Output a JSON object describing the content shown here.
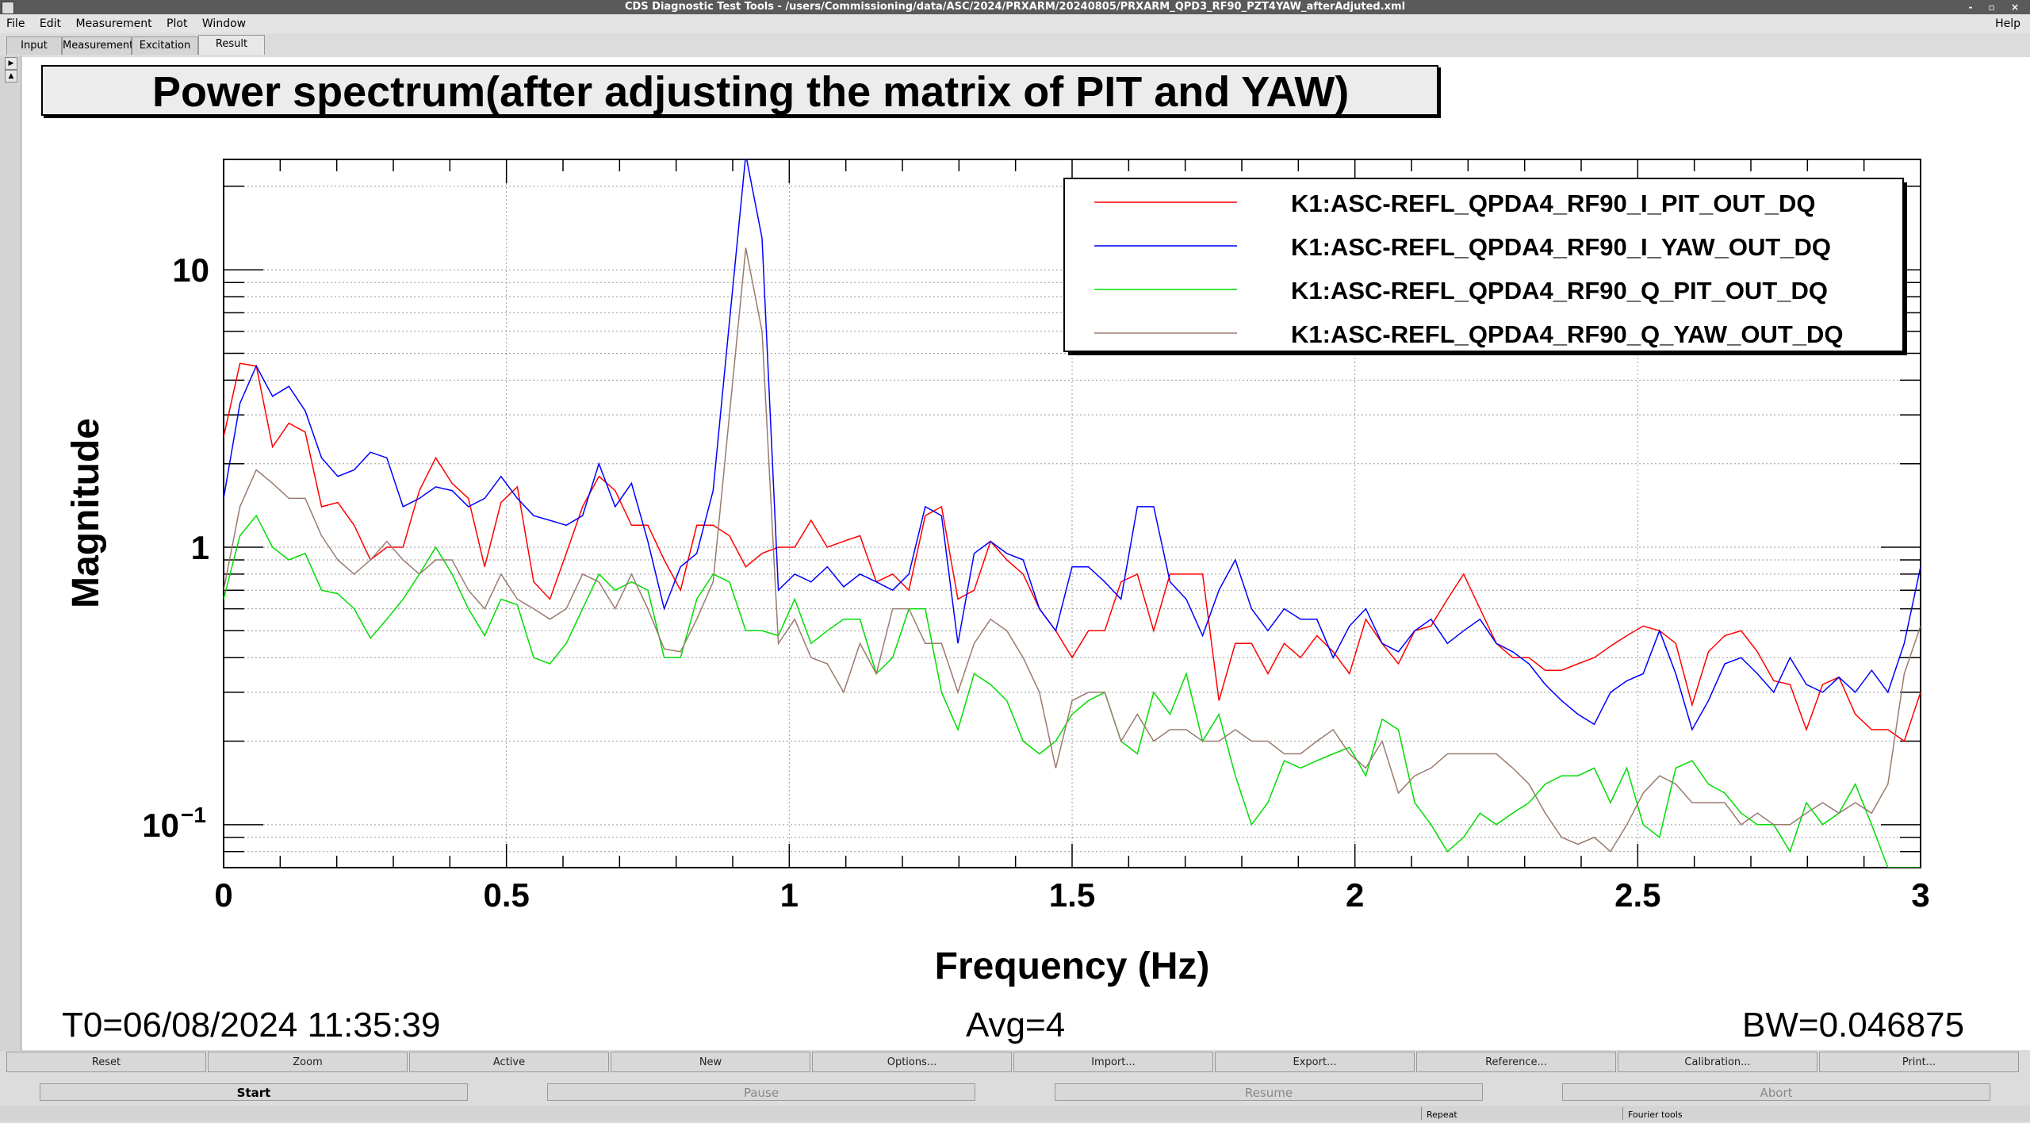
{
  "window": {
    "title": "CDS Diagnostic Test Tools - /users/Commissioning/data/ASC/2024/PRXARM/20240805/PRXARM_QPD3_RF90_PZT4YAW_afterAdjuted.xml",
    "controls": "- ▫ ×"
  },
  "menu": {
    "items": [
      "File",
      "Edit",
      "Measurement",
      "Plot",
      "Window"
    ],
    "help": "Help"
  },
  "tabs": [
    "Input",
    "Measurement",
    "Excitation",
    "Result"
  ],
  "plot": {
    "title": "Power spectrum(after adjusting the matrix of PIT and YAW)",
    "t0": "T0=06/08/2024 11:35:39",
    "avg": "Avg=4",
    "bw": "BW=0.046875"
  },
  "chart_data": {
    "type": "line",
    "xlabel": "Frequency (Hz)",
    "ylabel": "Magnitude",
    "xlim": [
      0,
      3
    ],
    "ylim": [
      0.07,
      25
    ],
    "yscale": "log",
    "grid": true,
    "legend": "top-right",
    "x_ticks": [
      {
        "v": 0,
        "label": "0"
      },
      {
        "v": 0.5,
        "label": "0.5"
      },
      {
        "v": 1,
        "label": "1"
      },
      {
        "v": 1.5,
        "label": "1.5"
      },
      {
        "v": 2,
        "label": "2"
      },
      {
        "v": 2.5,
        "label": "2.5"
      },
      {
        "v": 3,
        "label": "3"
      }
    ],
    "y_ticks": [
      {
        "v": 0.1,
        "label": "10",
        "sup": "−1"
      },
      {
        "v": 1,
        "label": "1",
        "sup": ""
      },
      {
        "v": 10,
        "label": "10",
        "sup": ""
      }
    ],
    "series": [
      {
        "name": "K1:ASC-REFL_QPDA4_RF90_I_PIT_OUT_DQ",
        "color": "#ff0000",
        "values": [
          2.5,
          4.6,
          4.5,
          2.3,
          2.8,
          2.6,
          1.4,
          1.45,
          1.2,
          0.9,
          1.0,
          1.0,
          1.6,
          2.1,
          1.7,
          1.5,
          0.85,
          1.45,
          1.65,
          0.75,
          0.65,
          0.95,
          1.4,
          1.8,
          1.6,
          1.2,
          1.2,
          0.9,
          0.7,
          1.2,
          1.2,
          1.1,
          0.85,
          0.95,
          1.0,
          1.0,
          1.25,
          1.0,
          1.05,
          1.1,
          0.75,
          0.8,
          0.7,
          1.3,
          1.4,
          0.65,
          0.7,
          1.05,
          0.9,
          0.8,
          0.6,
          0.5,
          0.4,
          0.5,
          0.5,
          0.75,
          0.8,
          0.5,
          0.8,
          0.8,
          0.8,
          0.28,
          0.45,
          0.45,
          0.35,
          0.45,
          0.4,
          0.48,
          0.42,
          0.35,
          0.55,
          0.45,
          0.38,
          0.5,
          0.52,
          0.65,
          0.8,
          0.6,
          0.45,
          0.4,
          0.4,
          0.36,
          0.36,
          0.38,
          0.4,
          0.44,
          0.48,
          0.52,
          0.5,
          0.45,
          0.27,
          0.42,
          0.48,
          0.5,
          0.42,
          0.33,
          0.32,
          0.22,
          0.32,
          0.34,
          0.25,
          0.22,
          0.22,
          0.2,
          0.3
        ]
      },
      {
        "name": "K1:ASC-REFL_QPDA4_RF90_I_YAW_OUT_DQ",
        "color": "#0000ff",
        "values": [
          1.5,
          3.3,
          4.5,
          3.5,
          3.8,
          3.1,
          2.1,
          1.8,
          1.9,
          2.2,
          2.1,
          1.4,
          1.5,
          1.65,
          1.6,
          1.4,
          1.5,
          1.8,
          1.5,
          1.3,
          1.25,
          1.2,
          1.3,
          2.0,
          1.4,
          1.7,
          1.05,
          0.6,
          0.85,
          0.95,
          1.6,
          6.5,
          26,
          13,
          0.7,
          0.8,
          0.75,
          0.85,
          0.72,
          0.8,
          0.75,
          0.7,
          0.8,
          1.4,
          1.3,
          0.45,
          0.95,
          1.05,
          0.95,
          0.9,
          0.6,
          0.5,
          0.85,
          0.85,
          0.75,
          0.65,
          1.4,
          1.4,
          0.75,
          0.65,
          0.48,
          0.7,
          0.9,
          0.6,
          0.5,
          0.6,
          0.55,
          0.55,
          0.4,
          0.52,
          0.6,
          0.45,
          0.42,
          0.5,
          0.55,
          0.45,
          0.5,
          0.55,
          0.45,
          0.42,
          0.38,
          0.32,
          0.28,
          0.25,
          0.23,
          0.3,
          0.33,
          0.35,
          0.5,
          0.35,
          0.22,
          0.28,
          0.38,
          0.4,
          0.35,
          0.3,
          0.4,
          0.32,
          0.3,
          0.34,
          0.3,
          0.36,
          0.3,
          0.45,
          0.85
        ]
      },
      {
        "name": "K1:ASC-REFL_QPDA4_RF90_Q_PIT_OUT_DQ",
        "color": "#00dd00",
        "values": [
          0.65,
          1.1,
          1.3,
          1.0,
          0.9,
          0.95,
          0.7,
          0.68,
          0.6,
          0.47,
          0.55,
          0.65,
          0.8,
          1.0,
          0.8,
          0.6,
          0.48,
          0.65,
          0.62,
          0.4,
          0.38,
          0.45,
          0.6,
          0.8,
          0.7,
          0.75,
          0.7,
          0.4,
          0.4,
          0.65,
          0.8,
          0.75,
          0.5,
          0.5,
          0.48,
          0.65,
          0.45,
          0.5,
          0.55,
          0.55,
          0.35,
          0.4,
          0.6,
          0.6,
          0.3,
          0.22,
          0.35,
          0.32,
          0.28,
          0.2,
          0.18,
          0.2,
          0.25,
          0.28,
          0.3,
          0.2,
          0.18,
          0.3,
          0.25,
          0.35,
          0.2,
          0.25,
          0.15,
          0.1,
          0.12,
          0.17,
          0.16,
          0.17,
          0.18,
          0.19,
          0.15,
          0.24,
          0.22,
          0.12,
          0.1,
          0.08,
          0.09,
          0.11,
          0.1,
          0.11,
          0.12,
          0.14,
          0.15,
          0.15,
          0.16,
          0.12,
          0.16,
          0.1,
          0.09,
          0.16,
          0.17,
          0.14,
          0.13,
          0.11,
          0.1,
          0.1,
          0.08,
          0.12,
          0.1,
          0.11,
          0.14,
          0.1,
          0.07,
          0.07,
          0.07
        ]
      },
      {
        "name": "K1:ASC-REFL_QPDA4_RF90_Q_YAW_OUT_DQ",
        "color": "#9a7b6e",
        "values": [
          0.7,
          1.4,
          1.9,
          1.7,
          1.5,
          1.5,
          1.1,
          0.9,
          0.8,
          0.9,
          1.05,
          0.9,
          0.8,
          0.9,
          0.9,
          0.7,
          0.6,
          0.8,
          0.65,
          0.6,
          0.55,
          0.6,
          0.8,
          0.75,
          0.6,
          0.8,
          0.6,
          0.43,
          0.42,
          0.55,
          0.75,
          3.0,
          12,
          6.0,
          0.45,
          0.55,
          0.4,
          0.38,
          0.3,
          0.45,
          0.35,
          0.6,
          0.6,
          0.45,
          0.45,
          0.3,
          0.45,
          0.55,
          0.5,
          0.4,
          0.3,
          0.16,
          0.28,
          0.3,
          0.3,
          0.2,
          0.25,
          0.2,
          0.22,
          0.22,
          0.2,
          0.2,
          0.22,
          0.2,
          0.2,
          0.18,
          0.18,
          0.2,
          0.22,
          0.18,
          0.16,
          0.2,
          0.13,
          0.15,
          0.16,
          0.18,
          0.18,
          0.18,
          0.18,
          0.16,
          0.14,
          0.11,
          0.09,
          0.085,
          0.09,
          0.08,
          0.1,
          0.13,
          0.15,
          0.14,
          0.12,
          0.12,
          0.12,
          0.1,
          0.11,
          0.1,
          0.1,
          0.11,
          0.12,
          0.11,
          0.12,
          0.11,
          0.14,
          0.35,
          0.52
        ]
      }
    ]
  },
  "buttons_row1": [
    "Reset",
    "Zoom",
    "Active",
    "New",
    "Options...",
    "Import...",
    "Export...",
    "Reference...",
    "Calibration...",
    "Print..."
  ],
  "buttons_row2": [
    "Start",
    "Pause",
    "Resume",
    "Abort"
  ],
  "status": {
    "repeat": "Repeat",
    "fourier": "Fourier tools"
  }
}
